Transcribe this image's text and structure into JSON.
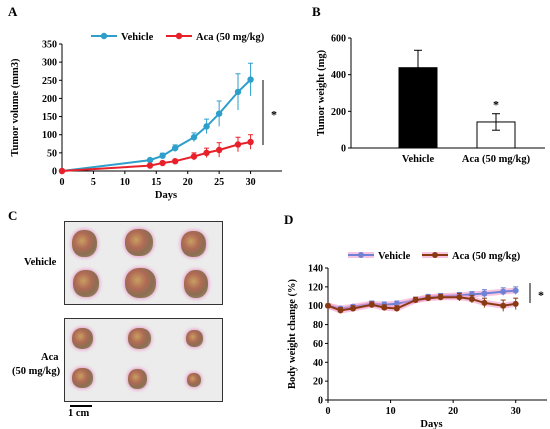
{
  "panels": {
    "a": {
      "letter": "A"
    },
    "b": {
      "letter": "B"
    },
    "c": {
      "letter": "C",
      "row_labels": [
        "Vehicle",
        "Aca",
        "(50 mg/kg)"
      ],
      "scale_label": "1 cm"
    },
    "d": {
      "letter": "D"
    }
  },
  "chart_data": [
    {
      "id": "A",
      "type": "line",
      "xlabel": "Days",
      "ylabel": "Tumor volume (mm3)",
      "xlim": [
        0,
        35
      ],
      "ylim": [
        0,
        350
      ],
      "xticks": [
        0,
        5,
        10,
        15,
        20,
        25,
        30
      ],
      "yticks": [
        0,
        50,
        100,
        150,
        200,
        250,
        300,
        350
      ],
      "legend_position": "top",
      "significance": "*",
      "series": [
        {
          "name": "Vehicle",
          "color": "#2e9fcb",
          "x": [
            0,
            14,
            16,
            18,
            21,
            23,
            25,
            28,
            30
          ],
          "y": [
            0,
            30,
            42,
            63,
            93,
            123,
            158,
            218,
            252
          ],
          "err": [
            0,
            5,
            7,
            9,
            12,
            20,
            35,
            50,
            45
          ]
        },
        {
          "name": "Aca (50 mg/kg)",
          "color": "#e8202a",
          "x": [
            0,
            14,
            16,
            18,
            21,
            23,
            25,
            28,
            30
          ],
          "y": [
            0,
            15,
            22,
            27,
            40,
            50,
            58,
            73,
            80
          ],
          "err": [
            0,
            3,
            4,
            5,
            10,
            13,
            20,
            20,
            20
          ]
        }
      ]
    },
    {
      "id": "B",
      "type": "bar",
      "ylabel": "Tumor weight (mg)",
      "ylim": [
        0,
        600
      ],
      "yticks": [
        0,
        200,
        400,
        600
      ],
      "categories": [
        "Vehicle",
        "Aca (50 mg/kg)"
      ],
      "values": [
        438,
        142
      ],
      "errors": [
        95,
        45
      ],
      "colors": [
        "#000000",
        "#ffffff"
      ],
      "significance": "*"
    },
    {
      "id": "D",
      "type": "line",
      "xlabel": "Days",
      "ylabel": "Body weight change (%)",
      "xlim": [
        0,
        35
      ],
      "ylim": [
        0,
        140
      ],
      "xticks": [
        0,
        10,
        20,
        30
      ],
      "yticks": [
        0,
        20,
        40,
        60,
        80,
        100,
        120,
        140
      ],
      "legend_position": "top",
      "significance": "*",
      "series": [
        {
          "name": "Vehicle",
          "color": "#6f82d6",
          "x": [
            0,
            2,
            4,
            7,
            9,
            11,
            14,
            16,
            18,
            21,
            23,
            25,
            28,
            30
          ],
          "y": [
            100,
            97,
            99,
            102,
            101,
            102,
            106,
            109,
            110,
            111,
            112,
            113,
            115,
            116
          ],
          "err": [
            1,
            2,
            2,
            3,
            3,
            3,
            3,
            3,
            3,
            3,
            3,
            4,
            4,
            4
          ]
        },
        {
          "name": "Aca (50 mg/kg)",
          "color": "#8a3a12",
          "x": [
            0,
            2,
            4,
            7,
            9,
            11,
            14,
            16,
            18,
            21,
            23,
            25,
            28,
            30
          ],
          "y": [
            100,
            95,
            97,
            101,
            98,
            97,
            106,
            108,
            109,
            109,
            107,
            103,
            100,
            102
          ],
          "err": [
            1,
            3,
            3,
            3,
            3,
            3,
            3,
            3,
            3,
            4,
            4,
            5,
            6,
            6
          ]
        }
      ]
    }
  ]
}
